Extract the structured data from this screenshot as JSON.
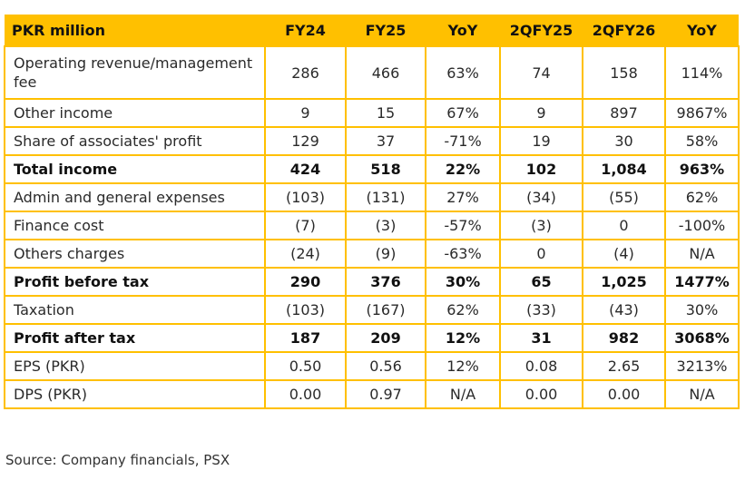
{
  "table": {
    "headers": [
      "PKR million",
      "FY24",
      "FY25",
      "YoY",
      "2QFY25",
      "2QFY26",
      "YoY"
    ],
    "rows": [
      {
        "label": "Operating revenue/management fee",
        "values": [
          "286",
          "466",
          "63%",
          "74",
          "158",
          "114%"
        ],
        "bold": false
      },
      {
        "label": "Other income",
        "values": [
          "9",
          "15",
          "67%",
          "9",
          "897",
          "9867%"
        ],
        "bold": false
      },
      {
        "label": "Share of associates' profit",
        "values": [
          "129",
          "37",
          "-71%",
          "19",
          "30",
          "58%"
        ],
        "bold": false
      },
      {
        "label": "Total income",
        "values": [
          "424",
          "518",
          "22%",
          "102",
          "1,084",
          "963%"
        ],
        "bold": true
      },
      {
        "label": "Admin and general expenses",
        "values": [
          "(103)",
          "(131)",
          "27%",
          "(34)",
          "(55)",
          "62%"
        ],
        "bold": false
      },
      {
        "label": "Finance cost",
        "values": [
          "(7)",
          "(3)",
          "-57%",
          "(3)",
          "0",
          "-100%"
        ],
        "bold": false
      },
      {
        "label": "Others charges",
        "values": [
          "(24)",
          "(9)",
          "-63%",
          "0",
          "(4)",
          "N/A"
        ],
        "bold": false
      },
      {
        "label": "Profit before tax",
        "values": [
          "290",
          "376",
          "30%",
          "65",
          "1,025",
          "1477%"
        ],
        "bold": true
      },
      {
        "label": "Taxation",
        "values": [
          "(103)",
          "(167)",
          "62%",
          "(33)",
          "(43)",
          "30%"
        ],
        "bold": false
      },
      {
        "label": "Profit after tax",
        "values": [
          "187",
          "209",
          "12%",
          "31",
          "982",
          "3068%"
        ],
        "bold": true
      },
      {
        "label": "EPS (PKR)",
        "values": [
          "0.50",
          "0.56",
          "12%",
          "0.08",
          "2.65",
          "3213%"
        ],
        "bold": false
      },
      {
        "label": "DPS (PKR)",
        "values": [
          "0.00",
          "0.97",
          "N/A",
          "0.00",
          "0.00",
          "N/A"
        ],
        "bold": false
      }
    ]
  },
  "source": "Source: Company financials, PSX",
  "colors": {
    "header_bg": "#FFC000",
    "border": "#FFC000"
  }
}
